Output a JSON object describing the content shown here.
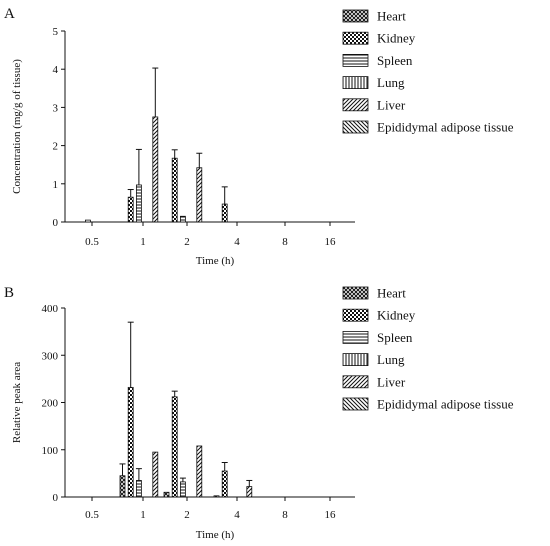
{
  "chart_data": [
    {
      "type": "bar",
      "panel_label": "A",
      "xlabel": "Time (h)",
      "ylabel": "Concentration (mg/g of tissue)",
      "categories": [
        "0.5",
        "1",
        "2",
        "4",
        "8",
        "16"
      ],
      "yticks": [
        "0",
        "1",
        "2",
        "3",
        "4",
        "5"
      ],
      "ylim": [
        0,
        5
      ],
      "grid": false,
      "legend_position": "top-right",
      "series": [
        {
          "name": "Heart",
          "pattern": "crosshatch",
          "values": [
            0,
            0,
            0,
            0,
            0,
            0
          ],
          "errors": [
            0,
            0,
            0,
            0,
            0,
            0
          ]
        },
        {
          "name": "Kidney",
          "pattern": "checker",
          "values": [
            0,
            0.65,
            1.67,
            0.47,
            0,
            0
          ],
          "errors": [
            0,
            0.2,
            0.22,
            0.45,
            0,
            0
          ]
        },
        {
          "name": "Spleen",
          "pattern": "horizontal",
          "values": [
            0.05,
            0.97,
            0.15,
            0,
            0,
            0
          ],
          "errors": [
            0,
            0.93,
            0,
            0,
            0,
            0
          ]
        },
        {
          "name": "Lung",
          "pattern": "vertical",
          "values": [
            0,
            0,
            0,
            0,
            0,
            0
          ],
          "errors": [
            0,
            0,
            0,
            0,
            0,
            0
          ]
        },
        {
          "name": "Liver",
          "pattern": "diagonal-up",
          "values": [
            0,
            2.75,
            1.42,
            0,
            0,
            0
          ],
          "errors": [
            0,
            1.28,
            0.38,
            0,
            0,
            0
          ]
        },
        {
          "name": "Epididymal adipose tissue",
          "pattern": "diagonal-down",
          "values": [
            0,
            0,
            0,
            0,
            0,
            0
          ],
          "errors": [
            0,
            0,
            0,
            0,
            0,
            0
          ]
        }
      ]
    },
    {
      "type": "bar",
      "panel_label": "B",
      "xlabel": "Time (h)",
      "ylabel": "Relative peak area",
      "categories": [
        "0.5",
        "1",
        "2",
        "4",
        "8",
        "16"
      ],
      "yticks": [
        "0",
        "100",
        "200",
        "300",
        "400"
      ],
      "ylim": [
        0,
        400
      ],
      "grid": false,
      "legend_position": "top-right",
      "series": [
        {
          "name": "Heart",
          "pattern": "crosshatch",
          "values": [
            0,
            45,
            10,
            2,
            0,
            0
          ],
          "errors": [
            0,
            25,
            0,
            0,
            0,
            0
          ]
        },
        {
          "name": "Kidney",
          "pattern": "checker",
          "values": [
            0,
            232,
            212,
            55,
            0,
            0
          ],
          "errors": [
            0,
            138,
            12,
            18,
            0,
            0
          ]
        },
        {
          "name": "Spleen",
          "pattern": "horizontal",
          "values": [
            0,
            35,
            32,
            0,
            0,
            0
          ],
          "errors": [
            0,
            25,
            8,
            0,
            0,
            0
          ]
        },
        {
          "name": "Lung",
          "pattern": "vertical",
          "values": [
            0,
            0,
            0,
            0,
            0,
            0
          ],
          "errors": [
            0,
            0,
            0,
            0,
            0,
            0
          ]
        },
        {
          "name": "Liver",
          "pattern": "diagonal-up",
          "values": [
            0,
            95,
            108,
            22,
            0,
            0
          ],
          "errors": [
            0,
            0,
            0,
            13,
            0,
            0
          ]
        },
        {
          "name": "Epididymal adipose tissue",
          "pattern": "diagonal-down",
          "values": [
            0,
            0,
            0,
            0,
            0,
            0
          ],
          "errors": [
            0,
            0,
            0,
            0,
            0,
            0
          ]
        }
      ]
    }
  ]
}
